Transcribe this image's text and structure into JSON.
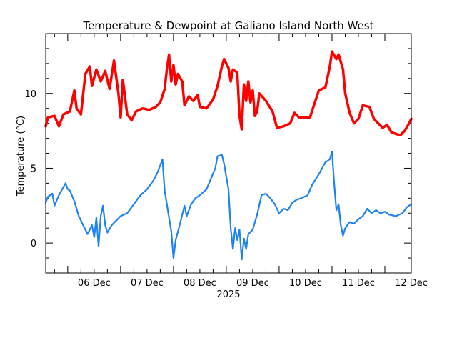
{
  "chart_data": {
    "type": "line",
    "title": "Temperature & Dewpoint at Galiano Island North West",
    "ylabel": "Temperature (°C)",
    "xlabel": "2025",
    "ylim": [
      -2,
      14
    ],
    "xlim": [
      "2025-12-05 14:00",
      "2025-12-12 12:00"
    ],
    "grid": false,
    "legend": "none",
    "y_ticks": [
      0,
      5,
      10
    ],
    "y_minor_ticks": [
      -1,
      1,
      2,
      3,
      4,
      6,
      7,
      8,
      9,
      11,
      12,
      13
    ],
    "x_ticks": [
      {
        "t": "2025-12-06 12:00",
        "label": "06 Dec"
      },
      {
        "t": "2025-12-07 12:00",
        "label": "07 Dec"
      },
      {
        "t": "2025-12-08 12:00",
        "label": "08 Dec"
      },
      {
        "t": "2025-12-09 12:00",
        "label": "09 Dec"
      },
      {
        "t": "2025-12-10 12:00",
        "label": "10 Dec"
      },
      {
        "t": "2025-12-11 12:00",
        "label": "11 Dec"
      },
      {
        "t": "2025-12-12 12:00",
        "label": "12 Dec"
      }
    ],
    "series": [
      {
        "color": "#ff0000",
        "points": [
          [
            "2025-12-05 14:00",
            7.8
          ],
          [
            "2025-12-05 15:00",
            8.4
          ],
          [
            "2025-12-05 18:00",
            8.5
          ],
          [
            "2025-12-05 20:00",
            7.8
          ],
          [
            "2025-12-05 22:00",
            8.6
          ],
          [
            "2025-12-06 01:00",
            8.8
          ],
          [
            "2025-12-06 03:00",
            10.2
          ],
          [
            "2025-12-06 04:00",
            9.0
          ],
          [
            "2025-12-06 06:00",
            8.6
          ],
          [
            "2025-12-06 08:00",
            11.3
          ],
          [
            "2025-12-06 10:00",
            11.8
          ],
          [
            "2025-12-06 11:00",
            10.5
          ],
          [
            "2025-12-06 13:00",
            11.6
          ],
          [
            "2025-12-06 15:00",
            10.8
          ],
          [
            "2025-12-06 17:00",
            11.5
          ],
          [
            "2025-12-06 19:00",
            10.3
          ],
          [
            "2025-12-06 21:00",
            12.2
          ],
          [
            "2025-12-06 23:00",
            10.0
          ],
          [
            "2025-12-07 00:00",
            8.4
          ],
          [
            "2025-12-07 01:00",
            10.9
          ],
          [
            "2025-12-07 03:00",
            8.6
          ],
          [
            "2025-12-07 05:00",
            8.2
          ],
          [
            "2025-12-07 07:00",
            8.8
          ],
          [
            "2025-12-07 10:00",
            9.0
          ],
          [
            "2025-12-07 13:00",
            8.9
          ],
          [
            "2025-12-07 16:00",
            9.1
          ],
          [
            "2025-12-07 18:00",
            9.4
          ],
          [
            "2025-12-07 20:00",
            10.3
          ],
          [
            "2025-12-07 21:00",
            11.6
          ],
          [
            "2025-12-07 22:00",
            12.6
          ],
          [
            "2025-12-07 23:00",
            10.8
          ],
          [
            "2025-12-08 00:00",
            11.9
          ],
          [
            "2025-12-08 01:00",
            10.6
          ],
          [
            "2025-12-08 02:00",
            11.3
          ],
          [
            "2025-12-08 04:00",
            10.8
          ],
          [
            "2025-12-08 05:00",
            9.2
          ],
          [
            "2025-12-08 07:00",
            9.8
          ],
          [
            "2025-12-08 09:00",
            9.5
          ],
          [
            "2025-12-08 11:00",
            9.9
          ],
          [
            "2025-12-08 12:00",
            9.1
          ],
          [
            "2025-12-08 15:00",
            9.0
          ],
          [
            "2025-12-08 18:00",
            9.6
          ],
          [
            "2025-12-08 20:00",
            10.5
          ],
          [
            "2025-12-08 22:00",
            11.8
          ],
          [
            "2025-12-08 23:00",
            12.3
          ],
          [
            "2025-12-09 01:00",
            11.7
          ],
          [
            "2025-12-09 02:00",
            10.8
          ],
          [
            "2025-12-09 03:00",
            11.6
          ],
          [
            "2025-12-09 05:00",
            11.4
          ],
          [
            "2025-12-09 06:00",
            8.5
          ],
          [
            "2025-12-09 07:00",
            7.6
          ],
          [
            "2025-12-09 08:00",
            10.6
          ],
          [
            "2025-12-09 09:00",
            9.5
          ],
          [
            "2025-12-09 10:00",
            10.8
          ],
          [
            "2025-12-09 11:00",
            9.4
          ],
          [
            "2025-12-09 12:00",
            10.2
          ],
          [
            "2025-12-09 13:00",
            8.5
          ],
          [
            "2025-12-09 14:00",
            8.8
          ],
          [
            "2025-12-09 15:00",
            10.0
          ],
          [
            "2025-12-09 18:00",
            9.5
          ],
          [
            "2025-12-09 21:00",
            8.8
          ],
          [
            "2025-12-09 23:00",
            7.7
          ],
          [
            "2025-12-10 02:00",
            7.8
          ],
          [
            "2025-12-10 05:00",
            8.0
          ],
          [
            "2025-12-10 07:00",
            8.7
          ],
          [
            "2025-12-10 09:00",
            8.4
          ],
          [
            "2025-12-10 14:00",
            8.4
          ],
          [
            "2025-12-10 16:00",
            9.3
          ],
          [
            "2025-12-10 18:00",
            10.2
          ],
          [
            "2025-12-10 21:00",
            10.4
          ],
          [
            "2025-12-10 23:00",
            11.8
          ],
          [
            "2025-12-11 00:00",
            12.8
          ],
          [
            "2025-12-11 02:00",
            12.3
          ],
          [
            "2025-12-11 03:00",
            12.6
          ],
          [
            "2025-12-11 05:00",
            11.6
          ],
          [
            "2025-12-11 06:00",
            10.0
          ],
          [
            "2025-12-11 08:00",
            8.7
          ],
          [
            "2025-12-11 10:00",
            8.0
          ],
          [
            "2025-12-11 12:00",
            8.3
          ],
          [
            "2025-12-11 14:00",
            9.2
          ],
          [
            "2025-12-11 17:00",
            9.1
          ],
          [
            "2025-12-11 19:00",
            8.3
          ],
          [
            "2025-12-11 21:00",
            8.0
          ],
          [
            "2025-12-11 23:00",
            7.7
          ],
          [
            "2025-12-12 01:00",
            7.9
          ],
          [
            "2025-12-12 03:00",
            7.4
          ],
          [
            "2025-12-12 05:00",
            7.3
          ],
          [
            "2025-12-12 07:00",
            7.2
          ],
          [
            "2025-12-12 09:00",
            7.5
          ],
          [
            "2025-12-12 11:00",
            8.0
          ],
          [
            "2025-12-12 12:00",
            8.3
          ]
        ]
      },
      {
        "color": "#1e82f0",
        "points": [
          [
            "2025-12-05 14:00",
            2.7
          ],
          [
            "2025-12-05 15:00",
            3.1
          ],
          [
            "2025-12-05 17:00",
            3.3
          ],
          [
            "2025-12-05 18:00",
            2.5
          ],
          [
            "2025-12-05 20:00",
            3.2
          ],
          [
            "2025-12-05 23:00",
            4.0
          ],
          [
            "2025-12-06 00:00",
            3.6
          ],
          [
            "2025-12-06 01:00",
            3.5
          ],
          [
            "2025-12-06 03:00",
            2.8
          ],
          [
            "2025-12-06 05:00",
            1.8
          ],
          [
            "2025-12-06 07:00",
            1.2
          ],
          [
            "2025-12-06 09:00",
            0.6
          ],
          [
            "2025-12-06 11:00",
            1.2
          ],
          [
            "2025-12-06 12:00",
            0.4
          ],
          [
            "2025-12-06 13:00",
            1.7
          ],
          [
            "2025-12-06 14:00",
            -0.2
          ],
          [
            "2025-12-06 15:00",
            1.8
          ],
          [
            "2025-12-06 16:00",
            2.5
          ],
          [
            "2025-12-06 17:00",
            1.2
          ],
          [
            "2025-12-06 18:00",
            0.7
          ],
          [
            "2025-12-06 20:00",
            1.2
          ],
          [
            "2025-12-06 22:00",
            1.5
          ],
          [
            "2025-12-07 00:00",
            1.8
          ],
          [
            "2025-12-07 03:00",
            2.0
          ],
          [
            "2025-12-07 06:00",
            2.6
          ],
          [
            "2025-12-07 09:00",
            3.2
          ],
          [
            "2025-12-07 12:00",
            3.6
          ],
          [
            "2025-12-07 15:00",
            4.2
          ],
          [
            "2025-12-07 17:00",
            4.8
          ],
          [
            "2025-12-07 19:00",
            5.6
          ],
          [
            "2025-12-07 20:00",
            3.5
          ],
          [
            "2025-12-07 22:00",
            1.7
          ],
          [
            "2025-12-07 23:00",
            0.8
          ],
          [
            "2025-12-08 00:00",
            -1.0
          ],
          [
            "2025-12-08 01:00",
            0.2
          ],
          [
            "2025-12-08 03:00",
            1.3
          ],
          [
            "2025-12-08 05:00",
            2.5
          ],
          [
            "2025-12-08 06:00",
            1.8
          ],
          [
            "2025-12-08 08:00",
            2.6
          ],
          [
            "2025-12-08 10:00",
            3.0
          ],
          [
            "2025-12-08 12:00",
            3.2
          ],
          [
            "2025-12-08 15:00",
            3.6
          ],
          [
            "2025-12-08 17:00",
            4.3
          ],
          [
            "2025-12-08 19:00",
            5.0
          ],
          [
            "2025-12-08 20:00",
            5.8
          ],
          [
            "2025-12-08 22:00",
            5.9
          ],
          [
            "2025-12-08 23:00",
            5.3
          ],
          [
            "2025-12-09 01:00",
            3.6
          ],
          [
            "2025-12-09 02:00",
            1.0
          ],
          [
            "2025-12-09 03:00",
            -0.4
          ],
          [
            "2025-12-09 04:00",
            1.0
          ],
          [
            "2025-12-09 05:00",
            0.2
          ],
          [
            "2025-12-09 06:00",
            0.9
          ],
          [
            "2025-12-09 07:00",
            -1.1
          ],
          [
            "2025-12-09 08:00",
            0.3
          ],
          [
            "2025-12-09 09:00",
            -0.4
          ],
          [
            "2025-12-09 10:00",
            0.6
          ],
          [
            "2025-12-09 12:00",
            0.9
          ],
          [
            "2025-12-09 14:00",
            1.9
          ],
          [
            "2025-12-09 16:00",
            3.2
          ],
          [
            "2025-12-09 18:00",
            3.3
          ],
          [
            "2025-12-09 20:00",
            3.0
          ],
          [
            "2025-12-09 22:00",
            2.6
          ],
          [
            "2025-12-10 00:00",
            2.0
          ],
          [
            "2025-12-10 02:00",
            2.3
          ],
          [
            "2025-12-10 04:00",
            2.2
          ],
          [
            "2025-12-10 06:00",
            2.7
          ],
          [
            "2025-12-10 08:00",
            2.9
          ],
          [
            "2025-12-10 10:00",
            3.0
          ],
          [
            "2025-12-10 13:00",
            3.2
          ],
          [
            "2025-12-10 15:00",
            3.9
          ],
          [
            "2025-12-10 18:00",
            4.6
          ],
          [
            "2025-12-10 21:00",
            5.4
          ],
          [
            "2025-12-10 23:00",
            5.6
          ],
          [
            "2025-12-11 00:00",
            6.1
          ],
          [
            "2025-12-11 01:00",
            4.0
          ],
          [
            "2025-12-11 02:00",
            2.2
          ],
          [
            "2025-12-11 03:00",
            2.6
          ],
          [
            "2025-12-11 04:00",
            1.2
          ],
          [
            "2025-12-11 05:00",
            0.5
          ],
          [
            "2025-12-11 06:00",
            1.0
          ],
          [
            "2025-12-11 08:00",
            1.4
          ],
          [
            "2025-12-11 10:00",
            1.3
          ],
          [
            "2025-12-11 12:00",
            1.6
          ],
          [
            "2025-12-11 14:00",
            1.8
          ],
          [
            "2025-12-11 16:00",
            2.3
          ],
          [
            "2025-12-11 18:00",
            2.0
          ],
          [
            "2025-12-11 20:00",
            2.2
          ],
          [
            "2025-12-11 22:00",
            2.0
          ],
          [
            "2025-12-12 00:00",
            2.1
          ],
          [
            "2025-12-12 02:00",
            1.9
          ],
          [
            "2025-12-12 05:00",
            1.8
          ],
          [
            "2025-12-12 08:00",
            2.0
          ],
          [
            "2025-12-12 10:00",
            2.4
          ],
          [
            "2025-12-12 12:00",
            2.6
          ]
        ]
      }
    ]
  }
}
